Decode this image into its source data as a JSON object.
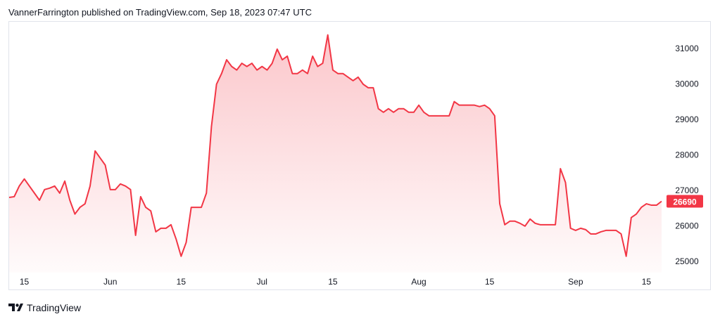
{
  "header": "VannerFarrington published on TradingView.com, Sep 18, 2023 07:47 UTC",
  "footer": "TradingView",
  "chart_data": {
    "type": "area",
    "color": "#f23645",
    "grid": false,
    "categories": [
      null,
      null,
      null,
      "15",
      null,
      null,
      null,
      null,
      null,
      null,
      null,
      null,
      null,
      null,
      null,
      null,
      null,
      null,
      null,
      null,
      "Jun",
      null,
      null,
      null,
      null,
      null,
      null,
      null,
      null,
      null,
      null,
      null,
      null,
      null,
      "15",
      null,
      null,
      null,
      null,
      null,
      null,
      null,
      null,
      null,
      null,
      null,
      null,
      null,
      null,
      null,
      "Jul",
      null,
      null,
      null,
      null,
      null,
      null,
      null,
      null,
      null,
      null,
      null,
      null,
      null,
      "15",
      null,
      null,
      null,
      null,
      null,
      null,
      null,
      null,
      null,
      null,
      null,
      null,
      null,
      null,
      null,
      null,
      "Aug",
      null,
      null,
      null,
      null,
      null,
      null,
      null,
      null,
      null,
      null,
      null,
      null,
      null,
      "15",
      null,
      null,
      null,
      null,
      null,
      null,
      null,
      null,
      null,
      null,
      null,
      null,
      null,
      null,
      null,
      null,
      "Sep",
      null,
      null,
      null,
      null,
      null,
      null,
      null,
      null,
      null,
      null,
      null,
      null,
      null,
      "15",
      null,
      null,
      null
    ],
    "values": [
      26800,
      26820,
      27120,
      27320,
      27120,
      26920,
      26720,
      27020,
      27060,
      27120,
      26920,
      27260,
      26720,
      26330,
      26520,
      26620,
      27120,
      28110,
      27910,
      27710,
      27020,
      27020,
      27180,
      27120,
      27020,
      25730,
      26820,
      26520,
      26420,
      25830,
      25930,
      25930,
      26030,
      25630,
      25140,
      25530,
      26520,
      26520,
      26520,
      26920,
      28800,
      29990,
      30290,
      30680,
      30490,
      30390,
      30580,
      30490,
      30580,
      30390,
      30490,
      30390,
      30580,
      30980,
      30680,
      30780,
      30290,
      30290,
      30390,
      30290,
      30780,
      30490,
      30580,
      31380,
      30390,
      30290,
      30290,
      30190,
      30090,
      30190,
      29990,
      29890,
      29890,
      29300,
      29200,
      29300,
      29200,
      29300,
      29300,
      29200,
      29200,
      29400,
      29200,
      29100,
      29100,
      29100,
      29100,
      29100,
      29500,
      29400,
      29400,
      29400,
      29400,
      29360,
      29400,
      29300,
      29100,
      26620,
      26030,
      26130,
      26130,
      26070,
      25990,
      26190,
      26070,
      26030,
      26030,
      26030,
      26030,
      27610,
      27220,
      25930,
      25870,
      25930,
      25890,
      25770,
      25770,
      25830,
      25870,
      25870,
      25870,
      25770,
      25140,
      26230,
      26330,
      26520,
      26620,
      26580,
      26580,
      26690
    ],
    "ylim": [
      24680,
      31770
    ],
    "yticks": [
      25000,
      26000,
      27000,
      28000,
      29000,
      30000,
      31000
    ]
  }
}
